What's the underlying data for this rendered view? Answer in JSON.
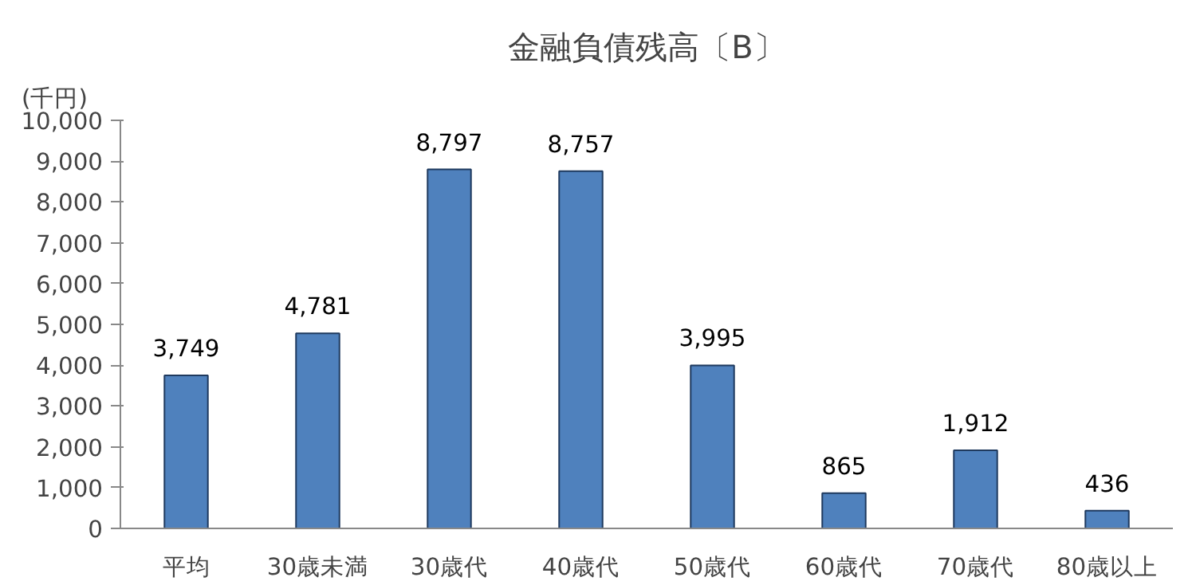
{
  "chart_data": {
    "type": "bar",
    "title": "金融負債残高〔B〕",
    "ylabel": "(千円)",
    "categories": [
      "平均",
      "30歳未満",
      "30歳代",
      "40歳代",
      "50歳代",
      "60歳代",
      "70歳代",
      "80歳以上"
    ],
    "values": [
      3749,
      4781,
      8797,
      8757,
      3995,
      865,
      1912,
      436
    ],
    "value_labels": [
      "3,749",
      "4,781",
      "8,797",
      "8,757",
      "3,995",
      "865",
      "1,912",
      "436"
    ],
    "color": "#4f81bd",
    "ylim": [
      0,
      10000
    ],
    "yticks": [
      0,
      {
        "value": 1000,
        "label": "1,000"
      },
      {
        "value": 2000,
        "label": "2,000"
      },
      {
        "value": 3000,
        "label": "3,000"
      },
      {
        "value": 4000,
        "label": "4,000"
      },
      {
        "value": 5000,
        "label": "5,000"
      },
      {
        "value": 6000,
        "label": "6,000"
      },
      {
        "value": 7000,
        "label": "7,000"
      },
      {
        "value": 8000,
        "label": "8,000"
      },
      {
        "value": 9000,
        "label": "9,000"
      },
      {
        "value": 10000,
        "label": "10,000"
      }
    ],
    "grid": false
  }
}
